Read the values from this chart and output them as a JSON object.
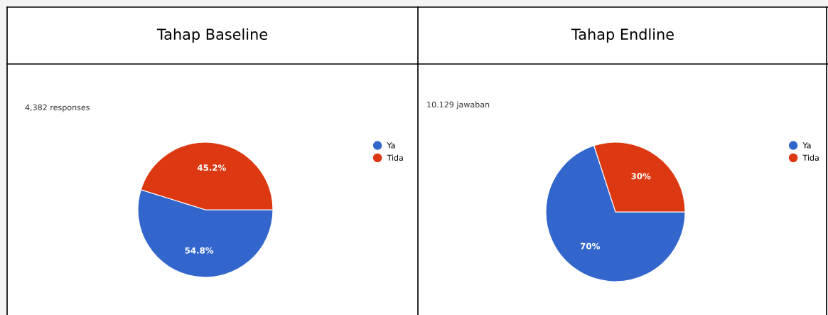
{
  "chart_data": [
    {
      "type": "pie",
      "title": "Tahap Baseline",
      "subtitle": "4,382 responses",
      "categories": [
        "Ya",
        "Tida"
      ],
      "values": [
        54.8,
        45.2
      ],
      "colors": [
        "#3366cc",
        "#dc3912"
      ],
      "value_labels": [
        "54.8%",
        "45.2%"
      ],
      "legend": "top right"
    },
    {
      "type": "pie",
      "title": "Tahap Endline",
      "subtitle": "10.129 jawaban",
      "categories": [
        "Ya",
        "Tida"
      ],
      "values": [
        70,
        30
      ],
      "colors": [
        "#3366cc",
        "#dc3912"
      ],
      "value_labels": [
        "70%",
        "30%"
      ],
      "legend": "top right"
    }
  ]
}
